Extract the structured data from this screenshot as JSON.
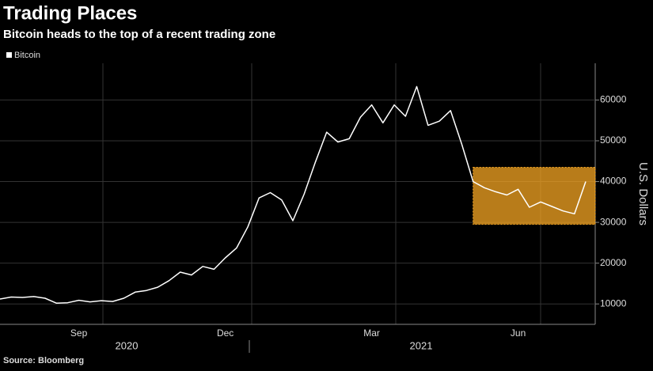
{
  "chart_data": {
    "type": "line",
    "title": "Trading Places",
    "subtitle": "Bitcoin heads to the top of a recent trading zone",
    "y_axis_label": "U.S. Dollars",
    "source": "Source: Bloomberg",
    "categories": [
      null,
      null,
      null,
      null,
      null,
      null,
      null,
      "Sep",
      null,
      null,
      null,
      null,
      null,
      null,
      null,
      null,
      null,
      null,
      null,
      null,
      "Dec",
      null,
      null,
      null,
      null,
      null,
      null,
      null,
      null,
      null,
      null,
      null,
      null,
      "Mar",
      null,
      null,
      null,
      null,
      null,
      null,
      null,
      null,
      null,
      null,
      null,
      null,
      "Jun",
      null,
      null,
      null,
      null,
      null,
      null
    ],
    "year_labels": [
      "2020",
      "2021"
    ],
    "series": [
      {
        "name": "Bitcoin",
        "color": "#ffffff",
        "values": [
          11200,
          11700,
          11600,
          11800,
          11400,
          10200,
          10300,
          10900,
          10500,
          10800,
          10600,
          11400,
          12900,
          13300,
          14100,
          15700,
          17800,
          17100,
          19200,
          18500,
          21300,
          23700,
          28900,
          36000,
          37300,
          35500,
          30400,
          36900,
          44800,
          52100,
          49700,
          50500,
          55800,
          58800,
          54400,
          58800,
          56000,
          63300,
          53800,
          54800,
          57400,
          49100,
          40000,
          38500,
          37500,
          36700,
          38100,
          33700,
          35000,
          33900,
          32800,
          32100,
          40000
        ]
      }
    ],
    "zone": {
      "y": [
        29500,
        43500
      ],
      "x_start": 42,
      "color": "#f5a623"
    },
    "ylim": [
      5000,
      69000
    ],
    "yticks": [
      10000,
      20000,
      30000,
      40000,
      50000,
      60000
    ],
    "grid": true
  }
}
